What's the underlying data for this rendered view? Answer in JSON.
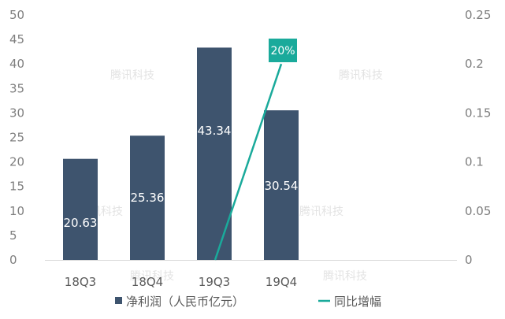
{
  "chart_data": {
    "type": "bar",
    "categories": [
      "18Q3",
      "18Q4",
      "19Q3",
      "19Q4"
    ],
    "series": [
      {
        "name": "净利润（人民币亿元）",
        "type": "bar",
        "axis": "left",
        "values": [
          20.63,
          25.36,
          43.34,
          30.54
        ],
        "labels": [
          "20.63",
          "25.36",
          "43.34",
          "30.54"
        ]
      },
      {
        "name": "同比增幅",
        "type": "line",
        "axis": "right",
        "points": [
          {
            "x": "19Q3",
            "y": 0.0
          },
          {
            "x": "19Q4",
            "y": 0.2
          }
        ]
      }
    ],
    "y_left": {
      "min": 0,
      "max": 50,
      "ticks": [
        "0",
        "5",
        "10",
        "15",
        "20",
        "25",
        "30",
        "35",
        "40",
        "45",
        "50"
      ]
    },
    "y_right": {
      "min": 0,
      "max": 0.25,
      "ticks": [
        "0",
        "0.05",
        "0.1",
        "0.15",
        "0.2",
        "0.25"
      ]
    },
    "callout": {
      "text": "20%",
      "x": "19Q4"
    },
    "grid": false,
    "legend_position": "bottom",
    "colors": {
      "bar": "#3e546e",
      "line": "#1aaa9b",
      "callout_bg": "#1aaa9b",
      "axis": "#d9d9d9"
    },
    "watermark": "腾讯科技"
  }
}
